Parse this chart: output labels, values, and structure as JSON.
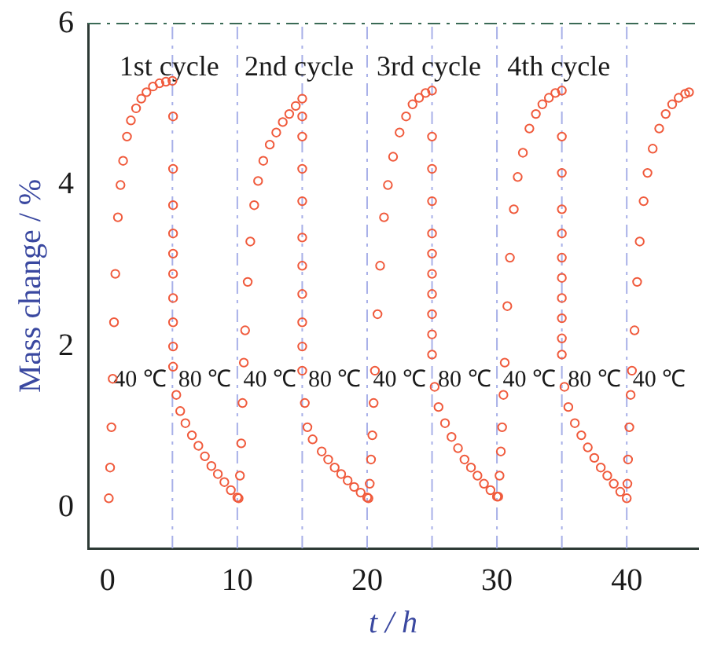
{
  "chart_data": {
    "type": "scatter",
    "xlabel": "t / h",
    "ylabel": "Mass change / %",
    "xlim": [
      -1.5,
      45.5
    ],
    "ylim": [
      -0.5,
      6
    ],
    "xticks": [
      0,
      10,
      20,
      30,
      40
    ],
    "yticks": [
      0,
      2,
      4,
      6
    ],
    "grid": false,
    "legend": false,
    "marker": "circle",
    "series": [
      {
        "color": "#f05a3c",
        "x": [
          0.1,
          0.2,
          0.3,
          0.4,
          0.5,
          0.6,
          0.8,
          1.0,
          1.2,
          1.5,
          1.8,
          2.2,
          2.6,
          3.0,
          3.5,
          4.0,
          4.5,
          5.0,
          5.05,
          5.05,
          5.05,
          5.05,
          5.05,
          5.05,
          5.05,
          5.05,
          5.05,
          5.05,
          5.3,
          5.6,
          6.0,
          6.5,
          7.0,
          7.5,
          8.0,
          8.5,
          9.0,
          9.5,
          10.0,
          10.1,
          10.2,
          10.3,
          10.4,
          10.5,
          10.6,
          10.8,
          11.0,
          11.3,
          11.6,
          12.0,
          12.5,
          13.0,
          13.5,
          14.0,
          14.5,
          15.0,
          15.0,
          15.0,
          15.0,
          15.0,
          15.0,
          15.0,
          15.0,
          15.0,
          15.0,
          15.0,
          15.2,
          15.4,
          15.8,
          16.5,
          17.0,
          17.5,
          18.0,
          18.5,
          19.0,
          19.5,
          20.0,
          20.1,
          20.2,
          20.3,
          20.4,
          20.5,
          20.6,
          20.8,
          21.0,
          21.3,
          21.6,
          22.0,
          22.5,
          23.0,
          23.5,
          24.0,
          24.5,
          25.0,
          25.0,
          25.0,
          25.0,
          25.0,
          25.0,
          25.0,
          25.0,
          25.0,
          25.0,
          25.0,
          25.2,
          25.5,
          26.0,
          26.5,
          27.0,
          27.5,
          28.0,
          28.5,
          29.0,
          29.5,
          30.0,
          30.1,
          30.2,
          30.3,
          30.4,
          30.5,
          30.6,
          30.8,
          31.0,
          31.3,
          31.6,
          32.0,
          32.5,
          33.0,
          33.5,
          34.0,
          34.5,
          35.0,
          35.0,
          35.0,
          35.0,
          35.0,
          35.0,
          35.0,
          35.0,
          35.0,
          35.0,
          35.0,
          35.2,
          35.5,
          36.0,
          36.5,
          37.0,
          37.5,
          38.0,
          38.5,
          39.0,
          39.5,
          40.0,
          40.05,
          40.1,
          40.2,
          40.3,
          40.4,
          40.6,
          40.8,
          41.0,
          41.3,
          41.6,
          42.0,
          42.5,
          43.0,
          43.5,
          44.0,
          44.5,
          44.8
        ],
        "values": [
          0.12,
          0.5,
          1.0,
          1.6,
          2.3,
          2.9,
          3.6,
          4.0,
          4.3,
          4.6,
          4.8,
          4.95,
          5.07,
          5.15,
          5.22,
          5.26,
          5.28,
          5.29,
          4.85,
          4.2,
          3.75,
          3.4,
          3.15,
          2.9,
          2.6,
          2.3,
          2.0,
          1.75,
          1.4,
          1.2,
          1.05,
          0.9,
          0.77,
          0.64,
          0.52,
          0.42,
          0.32,
          0.22,
          0.13,
          0.12,
          0.4,
          0.8,
          1.3,
          1.8,
          2.2,
          2.8,
          3.3,
          3.75,
          4.05,
          4.3,
          4.5,
          4.65,
          4.78,
          4.88,
          4.98,
          5.07,
          4.85,
          4.6,
          4.2,
          3.8,
          3.35,
          3.0,
          2.65,
          2.3,
          2.0,
          1.7,
          1.3,
          1.0,
          0.85,
          0.7,
          0.6,
          0.5,
          0.42,
          0.34,
          0.26,
          0.19,
          0.13,
          0.12,
          0.3,
          0.6,
          0.9,
          1.3,
          1.7,
          2.4,
          3.0,
          3.6,
          4.0,
          4.35,
          4.65,
          4.85,
          5.0,
          5.08,
          5.14,
          5.17,
          4.6,
          4.2,
          3.8,
          3.4,
          3.15,
          2.9,
          2.65,
          2.4,
          2.15,
          1.9,
          1.5,
          1.25,
          1.05,
          0.88,
          0.74,
          0.6,
          0.5,
          0.4,
          0.3,
          0.22,
          0.14,
          0.14,
          0.4,
          0.7,
          1.0,
          1.4,
          1.8,
          2.5,
          3.1,
          3.7,
          4.1,
          4.4,
          4.7,
          4.88,
          5.0,
          5.08,
          5.14,
          5.17,
          4.6,
          4.15,
          3.7,
          3.4,
          3.1,
          2.85,
          2.6,
          2.35,
          2.1,
          1.9,
          1.5,
          1.25,
          1.05,
          0.9,
          0.75,
          0.62,
          0.5,
          0.4,
          0.3,
          0.2,
          0.12,
          0.3,
          0.6,
          1.0,
          1.4,
          1.7,
          2.2,
          2.8,
          3.3,
          3.8,
          4.15,
          4.45,
          4.7,
          4.88,
          5.0,
          5.08,
          5.13,
          5.15
        ]
      }
    ],
    "ref_lines": [
      {
        "axis": "x",
        "value": 5,
        "color": "#a8b0e8",
        "line_style": "dashed"
      },
      {
        "axis": "x",
        "value": 10,
        "color": "#a8b0e8",
        "line_style": "dashed"
      },
      {
        "axis": "x",
        "value": 15,
        "color": "#a8b0e8",
        "line_style": "dashed"
      },
      {
        "axis": "x",
        "value": 20,
        "color": "#a8b0e8",
        "line_style": "dashed"
      },
      {
        "axis": "x",
        "value": 25,
        "color": "#a8b0e8",
        "line_style": "dashed"
      },
      {
        "axis": "x",
        "value": 30,
        "color": "#a8b0e8",
        "line_style": "dashed"
      },
      {
        "axis": "x",
        "value": 35,
        "color": "#a8b0e8",
        "line_style": "dashed"
      },
      {
        "axis": "x",
        "value": 40,
        "color": "#a8b0e8",
        "line_style": "dashed"
      },
      {
        "axis": "y",
        "value": 6,
        "color": "#3a6a55",
        "line_style": "dashed"
      }
    ],
    "annotations": [
      "1st cycle",
      "2nd cycle",
      "3rd cycle",
      "4th cycle",
      "40 ℃",
      "80 ℃",
      "40 ℃",
      "80 ℃",
      "40 ℃",
      "80 ℃",
      "40 ℃",
      "80 ℃",
      "40 ℃"
    ]
  }
}
